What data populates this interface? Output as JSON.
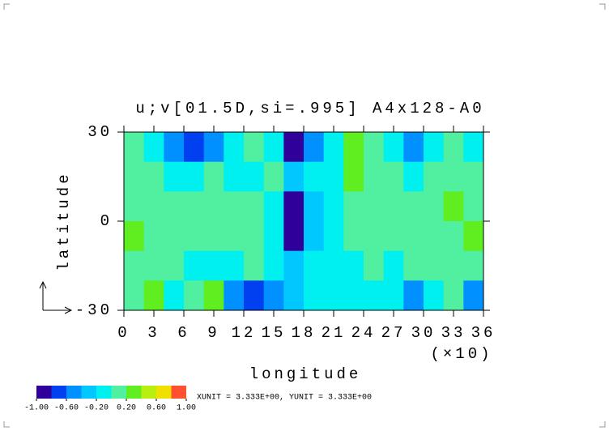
{
  "chart_data": {
    "type": "contour",
    "title": "u;v[01.5D,si=.995] A4x128-A0",
    "x_label": "longitude",
    "x_scale_label": "(×10)",
    "y_label": "latitude",
    "xlim": [
      0,
      36
    ],
    "ylim": [
      -30,
      30
    ],
    "xticks": [
      0,
      3,
      6,
      9,
      12,
      15,
      18,
      21,
      24,
      27,
      30,
      33,
      36
    ],
    "yticks": [
      -30,
      0,
      30
    ],
    "x": [
      1,
      3,
      5,
      7,
      9,
      11,
      13,
      15,
      17,
      19,
      21,
      23,
      25,
      27,
      29,
      31,
      33,
      35
    ],
    "y": [
      25,
      15,
      5,
      -5,
      -15,
      -25
    ],
    "z": [
      [
        0.1,
        -0.1,
        -0.5,
        -0.7,
        -0.5,
        -0.1,
        0.0,
        -0.2,
        -0.9,
        -0.6,
        -0.1,
        0.3,
        0.1,
        -0.1,
        -0.5,
        -0.1,
        0.1,
        -0.1
      ],
      [
        0.1,
        0.0,
        -0.2,
        -0.1,
        0.0,
        -0.1,
        -0.1,
        0.0,
        -0.3,
        -0.2,
        -0.1,
        0.2,
        0.1,
        0.0,
        -0.1,
        0.1,
        0.0,
        0.0
      ],
      [
        0.1,
        0.1,
        0.1,
        0.0,
        0.1,
        0.0,
        0.1,
        -0.1,
        -0.9,
        -0.3,
        -0.1,
        0.1,
        0.1,
        0.1,
        0.0,
        0.1,
        0.2,
        0.1
      ],
      [
        0.2,
        0.1,
        0.1,
        0.0,
        0.1,
        0.0,
        0.1,
        -0.1,
        -0.9,
        -0.3,
        -0.1,
        0.1,
        0.1,
        0.1,
        0.0,
        0.1,
        0.1,
        0.2
      ],
      [
        0.1,
        0.1,
        0.0,
        -0.1,
        -0.2,
        -0.1,
        0.0,
        -0.1,
        -0.3,
        -0.1,
        -0.2,
        -0.1,
        0.0,
        -0.1,
        0.0,
        0.1,
        0.1,
        0.1
      ],
      [
        0.1,
        0.2,
        -0.1,
        0.0,
        0.2,
        -0.5,
        -0.8,
        -0.5,
        -0.4,
        -0.2,
        -0.1,
        -0.2,
        -0.1,
        -0.2,
        -0.6,
        -0.1,
        0.0,
        -0.5
      ]
    ],
    "levels": [
      -1.0,
      -0.8,
      -0.6,
      -0.4,
      -0.2,
      0.0,
      0.2,
      0.4,
      0.6,
      0.8,
      1.0
    ],
    "colors": [
      "#30009a",
      "#0040f0",
      "#0090ff",
      "#00c8ff",
      "#00f0f0",
      "#50f0a0",
      "#60ee20",
      "#b8ee10",
      "#f0e000",
      "#ff5030"
    ],
    "colorbar_ticks": [
      {
        "value": -1.0,
        "label": "-1.00"
      },
      {
        "value": -0.6,
        "label": "-0.60"
      },
      {
        "value": -0.2,
        "label": "-0.20"
      },
      {
        "value": 0.2,
        "label": "0.20"
      },
      {
        "value": 0.6,
        "label": "0.60"
      },
      {
        "value": 1.0,
        "label": "1.00"
      }
    ],
    "unit_note": "XUNIT = 3.333E+00, YUNIT = 3.333E+00"
  }
}
